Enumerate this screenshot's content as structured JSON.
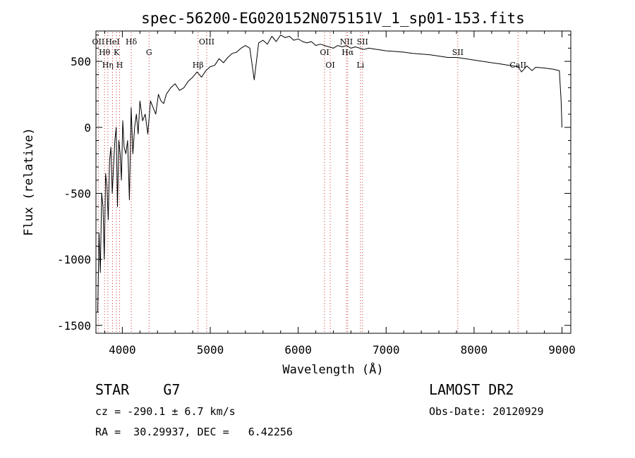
{
  "chart_data": {
    "type": "line",
    "title": "spec-56200-EG020152N075151V_1_sp01-153.fits",
    "xlabel": "Wavelength (Å)",
    "ylabel": "Flux (relative)",
    "xlim": [
      3700,
      9100
    ],
    "ylim": [
      -1560,
      730
    ],
    "x_ticks": [
      4000,
      5000,
      6000,
      7000,
      8000,
      9000
    ],
    "y_ticks": [
      -1500,
      -1000,
      -500,
      0,
      500
    ],
    "grid": false,
    "series": [
      {
        "x": [
          3705,
          3720,
          3735,
          3750,
          3765,
          3780,
          3795,
          3810,
          3825,
          3840,
          3855,
          3870,
          3885,
          3900,
          3915,
          3930,
          3945,
          3960,
          3975,
          3990,
          4005,
          4020,
          4040,
          4060,
          4080,
          4100,
          4120,
          4140,
          4160,
          4180,
          4200,
          4230,
          4260,
          4290,
          4320,
          4350,
          4380,
          4410,
          4440,
          4470,
          4500,
          4550,
          4600,
          4650,
          4700,
          4750,
          4800,
          4850,
          4900,
          4950,
          5000,
          5050,
          5100,
          5150,
          5200,
          5250,
          5300,
          5350,
          5400,
          5450,
          5500,
          5550,
          5600,
          5650,
          5700,
          5750,
          5800,
          5850,
          5900,
          5950,
          6000,
          6050,
          6100,
          6150,
          6200,
          6250,
          6300,
          6350,
          6400,
          6450,
          6500,
          6550,
          6600,
          6650,
          6700,
          6750,
          6800,
          6900,
          7000,
          7100,
          7200,
          7300,
          7400,
          7500,
          7600,
          7700,
          7800,
          7900,
          8000,
          8100,
          8200,
          8300,
          8400,
          8500,
          8540,
          8600,
          8660,
          8700,
          8800,
          8900,
          8970,
          8990,
          9000
        ],
        "y": [
          -1400,
          -1400,
          -800,
          -1100,
          -500,
          -600,
          -1000,
          -350,
          -450,
          -700,
          -250,
          -150,
          -500,
          -300,
          -100,
          0,
          -600,
          -100,
          -200,
          -400,
          50,
          -150,
          -200,
          -100,
          -550,
          150,
          -200,
          0,
          100,
          -50,
          200,
          50,
          100,
          -50,
          200,
          150,
          100,
          250,
          200,
          180,
          250,
          300,
          330,
          280,
          300,
          350,
          380,
          420,
          380,
          430,
          460,
          470,
          520,
          490,
          530,
          560,
          570,
          600,
          620,
          600,
          360,
          640,
          660,
          630,
          690,
          650,
          700,
          680,
          690,
          660,
          670,
          650,
          640,
          650,
          620,
          630,
          620,
          610,
          600,
          620,
          610,
          620,
          600,
          610,
          600,
          590,
          600,
          590,
          580,
          575,
          570,
          560,
          555,
          550,
          540,
          530,
          530,
          520,
          510,
          500,
          490,
          480,
          470,
          460,
          420,
          465,
          430,
          455,
          450,
          440,
          430,
          200,
          0
        ]
      }
    ],
    "lines": {
      "color": "#cc3333",
      "items": [
        {
          "x": 3727,
          "label": "OII"
        },
        {
          "x": 3798,
          "label": "Hθ"
        },
        {
          "x": 3835,
          "label": "Hη"
        },
        {
          "x": 3889,
          "label": "HeI"
        },
        {
          "x": 3934,
          "label": "K"
        },
        {
          "x": 3969,
          "label": "H"
        },
        {
          "x": 4102,
          "label": "Hδ"
        },
        {
          "x": 4304,
          "label": "G"
        },
        {
          "x": 4861,
          "label": "Hβ"
        },
        {
          "x": 4959,
          "label": "OIII"
        },
        {
          "x": 6300,
          "label": "OI"
        },
        {
          "x": 6364,
          "label": "OI"
        },
        {
          "x": 6548,
          "label": "NII"
        },
        {
          "x": 6563,
          "label": "Hα"
        },
        {
          "x": 6708,
          "label": "Li"
        },
        {
          "x": 6731,
          "label": "SII"
        },
        {
          "x": 7815,
          "label": "SII"
        },
        {
          "x": 8500,
          "label": "CaII"
        }
      ]
    }
  },
  "info": {
    "class": "STAR    G7",
    "cz": "cz = -290.1 ± 6.7 km/s",
    "radec": "RA =  30.29937, DEC =   6.42256",
    "survey": "LAMOST DR2",
    "obsdate": "Obs-Date: 20120929"
  }
}
